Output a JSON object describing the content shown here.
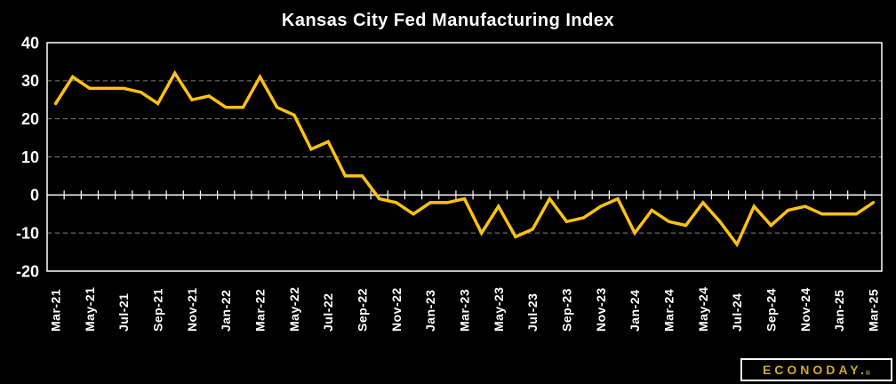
{
  "title": "Kansas City Fed Manufacturing Index",
  "branding": {
    "logo_text": "ECONODAY.",
    "registered_mark": "®"
  },
  "colors": {
    "background": "#000000",
    "line": "#ffc20e",
    "axis": "#ffffff",
    "gridline": "#7f7f7f",
    "text": "#ffffff",
    "logo_gold": "#d5a82b"
  },
  "chart_data": {
    "type": "line",
    "title": "Kansas City Fed Manufacturing Index",
    "series_name": "Kansas City Fed Manufacturing Index",
    "categories": [
      "Mar-21",
      "Apr-21",
      "May-21",
      "Jun-21",
      "Jul-21",
      "Aug-21",
      "Sep-21",
      "Oct-21",
      "Nov-21",
      "Dec-21",
      "Jan-22",
      "Feb-22",
      "Mar-22",
      "Apr-22",
      "May-22",
      "Jun-22",
      "Jul-22",
      "Aug-22",
      "Sep-22",
      "Oct-22",
      "Nov-22",
      "Dec-22",
      "Jan-23",
      "Feb-23",
      "Mar-23",
      "Apr-23",
      "May-23",
      "Jun-23",
      "Jul-23",
      "Aug-23",
      "Sep-23",
      "Oct-23",
      "Nov-23",
      "Dec-23",
      "Jan-24",
      "Feb-24",
      "Mar-24",
      "Apr-24",
      "May-24",
      "Jun-24",
      "Jul-24",
      "Aug-24",
      "Sep-24",
      "Oct-24",
      "Nov-24",
      "Dec-24",
      "Jan-25",
      "Feb-25",
      "Mar-25"
    ],
    "values": [
      24,
      31,
      28,
      28,
      28,
      27,
      24,
      32,
      25,
      26,
      23,
      23,
      31,
      23,
      21,
      12,
      14,
      5,
      5,
      -1,
      -2,
      -5,
      -2,
      -2,
      -1,
      -10,
      -3,
      -11,
      -9,
      -1,
      -7,
      -6,
      -3,
      -1,
      -10,
      -4,
      -7,
      -8,
      -2,
      -7,
      -13,
      -3,
      -8,
      -4,
      -3,
      -5,
      -5,
      -5,
      -2
    ],
    "x_tick_label_every": 2,
    "visible_x_labels": [
      "Mar-21",
      "May-21",
      "Jul-21",
      "Sep-21",
      "Nov-21",
      "Jan-22",
      "Mar-22",
      "May-22",
      "Jul-22",
      "Sep-22",
      "Nov-22",
      "Jan-23",
      "Mar-23",
      "May-23",
      "Jul-23",
      "Sep-23",
      "Nov-23",
      "Jan-24",
      "Mar-24",
      "May-24",
      "Jul-24",
      "Sep-24",
      "Nov-24",
      "Jan-25",
      "Mar-25"
    ],
    "ylim": [
      -20,
      40
    ],
    "yticks": [
      40,
      30,
      20,
      10,
      0,
      -10,
      -20
    ],
    "gridline_values": [
      30,
      20,
      10,
      -10
    ],
    "zero_axis": true,
    "grid": "horizontal-dashed",
    "legend": "none",
    "xlabel": "",
    "ylabel": ""
  }
}
